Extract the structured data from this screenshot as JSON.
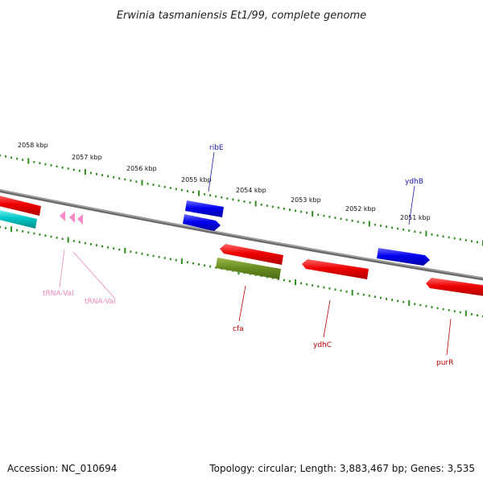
{
  "title": "Erwinia tasmaniensis Et1/99, complete genome",
  "footer": {
    "accession": "Accession: NC_010694",
    "summary": "Topology: circular; Length: 3,883,467 bp; Genes: 3,535"
  },
  "colors": {
    "backbone": "#808080",
    "tick": "#2e8b1e",
    "forward_gene": "#0000ee",
    "reverse_gene": "#ee0000",
    "cds_other": "#6b8e23",
    "rna_forward": "#00c8c8",
    "trna": "#ff88c8",
    "label_blue": "#1a1aaa",
    "label_red": "#bb0000",
    "label_pink": "#ee88bb"
  },
  "scale_ticks": [
    "2058 kbp",
    "2057 kbp",
    "2056 kbp",
    "2055 kbp",
    "2054 kbp",
    "2053 kbp",
    "2052 kbp",
    "2051 kbp"
  ],
  "genes": {
    "ribE": "ribE",
    "ydhB": "ydhB",
    "cfa": "cfa",
    "ydhC": "ydhC",
    "purR": "purR",
    "trna1": "tRNA-Val",
    "trna2": "tRNA-Val"
  }
}
